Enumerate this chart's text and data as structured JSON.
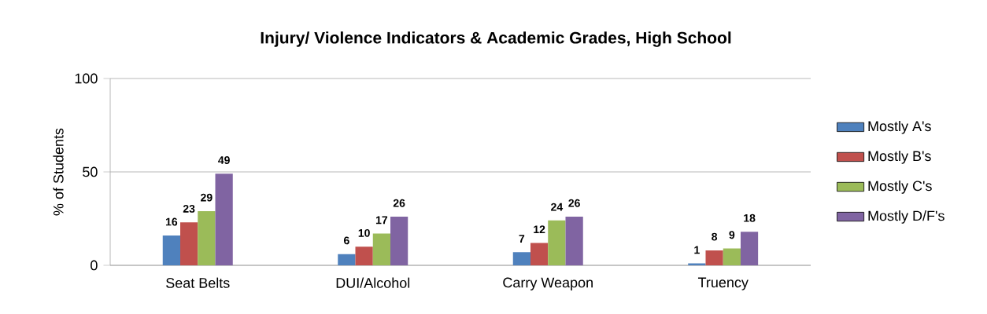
{
  "chart_data": {
    "type": "bar",
    "title": "Injury/ Violence Indicators & Academic Grades, High School",
    "ylabel": "% of Students",
    "categories": [
      "Seat Belts",
      "DUI/Alcohol",
      "Carry Weapon",
      "Truency"
    ],
    "series": [
      {
        "name": "Mostly A's",
        "color": "#4f81bd",
        "values": [
          16,
          6,
          7,
          1
        ]
      },
      {
        "name": "Mostly B's",
        "color": "#c0504d",
        "values": [
          23,
          10,
          12,
          8
        ]
      },
      {
        "name": "Mostly C's",
        "color": "#9bbb59",
        "values": [
          29,
          17,
          24,
          9
        ]
      },
      {
        "name": "Mostly D/F's",
        "color": "#8064a2",
        "values": [
          49,
          26,
          26,
          18
        ]
      }
    ],
    "ylim": [
      0,
      100
    ],
    "yticks": [
      0,
      50,
      100
    ],
    "grid": "y",
    "legend": "right",
    "data_labels": true
  }
}
